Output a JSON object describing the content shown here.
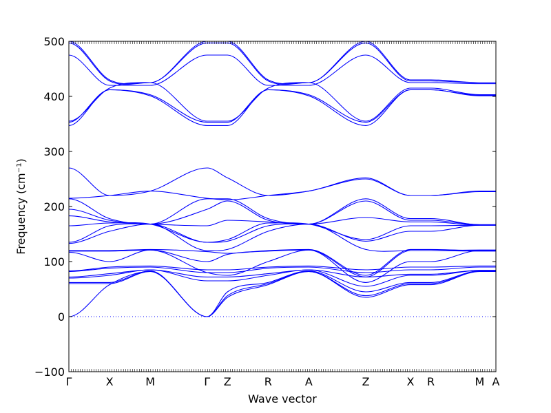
{
  "chart_data": {
    "type": "line",
    "title": "",
    "xlabel": "Wave vector",
    "ylabel": "Frequency (cm⁻¹)",
    "ylim": [
      -100,
      500
    ],
    "yticks": [
      -100,
      0,
      100,
      200,
      300,
      400,
      500
    ],
    "xlim": [
      0,
      10.5
    ],
    "high_symmetry_points": [
      {
        "label": "Γ",
        "x": 0.0
      },
      {
        "label": "X",
        "x": 1.0
      },
      {
        "label": "M",
        "x": 2.0
      },
      {
        "label": "Γ",
        "x": 3.4
      },
      {
        "label": "Z",
        "x": 3.9
      },
      {
        "label": "R",
        "x": 4.9
      },
      {
        "label": "A",
        "x": 5.9
      },
      {
        "label": "Z",
        "x": 7.3
      },
      {
        "label": "X",
        "x": 8.4
      },
      {
        "label": "R",
        "x": 8.9
      },
      {
        "label": "M",
        "x": 10.1
      },
      {
        "label": "A",
        "x": 10.5
      }
    ],
    "zero_line": true,
    "grid": false,
    "line_color": "#0000ff",
    "series": [
      {
        "values": [
          500,
          430,
          425,
          500,
          500,
          430,
          425,
          500,
          430,
          430,
          425,
          425
        ]
      },
      {
        "values": [
          497,
          428,
          425,
          497,
          497,
          428,
          425,
          497,
          428,
          428,
          425,
          425
        ]
      },
      {
        "values": [
          475,
          420,
          420,
          475,
          475,
          420,
          420,
          475,
          425,
          425,
          423,
          423
        ]
      },
      {
        "values": [
          355,
          415,
          425,
          355,
          355,
          415,
          425,
          355,
          415,
          415,
          403,
          403
        ]
      },
      {
        "values": [
          353,
          412,
          403,
          353,
          353,
          412,
          403,
          353,
          412,
          412,
          402,
          402
        ]
      },
      {
        "values": [
          347,
          412,
          401,
          347,
          347,
          412,
          401,
          347,
          412,
          412,
          401,
          401
        ]
      },
      {
        "values": [
          270,
          220,
          228,
          270,
          252,
          220,
          228,
          252,
          220,
          220,
          228,
          228
        ]
      },
      {
        "values": [
          215,
          220,
          228,
          215,
          212,
          220,
          228,
          250,
          220,
          220,
          227,
          227
        ]
      },
      {
        "values": [
          214,
          178,
          168,
          214,
          214,
          178,
          168,
          214,
          178,
          178,
          167,
          167
        ]
      },
      {
        "values": [
          195,
          175,
          168,
          195,
          210,
          175,
          168,
          210,
          175,
          175,
          167,
          167
        ]
      },
      {
        "values": [
          183,
          172,
          168,
          165,
          175,
          172,
          168,
          180,
          172,
          172,
          166,
          166
        ]
      },
      {
        "values": [
          165,
          170,
          168,
          135,
          140,
          170,
          168,
          140,
          165,
          165,
          166,
          166
        ]
      },
      {
        "values": [
          135,
          165,
          168,
          135,
          137,
          165,
          168,
          137,
          155,
          155,
          166,
          166
        ]
      },
      {
        "values": [
          133,
          155,
          168,
          120,
          122,
          155,
          168,
          122,
          120,
          120,
          121,
          121
        ]
      },
      {
        "values": [
          120,
          120,
          122,
          118,
          115,
          120,
          122,
          75,
          122,
          122,
          120,
          120
        ]
      },
      {
        "values": [
          119,
          119,
          121,
          100,
          113,
          119,
          121,
          72,
          120,
          120,
          119,
          119
        ]
      },
      {
        "values": [
          117,
          100,
          121,
          80,
          75,
          100,
          121,
          62,
          100,
          100,
          120,
          120
        ]
      },
      {
        "values": [
          83,
          90,
          92,
          85,
          85,
          90,
          92,
          85,
          90,
          90,
          92,
          92
        ]
      },
      {
        "values": [
          82,
          88,
          90,
          80,
          80,
          88,
          90,
          80,
          85,
          85,
          90,
          90
        ]
      },
      {
        "values": [
          72,
          78,
          85,
          72,
          72,
          78,
          85,
          72,
          77,
          77,
          84,
          84
        ]
      },
      {
        "values": [
          70,
          75,
          85,
          65,
          65,
          75,
          85,
          55,
          75,
          75,
          84,
          84
        ]
      },
      {
        "values": [
          62,
          62,
          83,
          0,
          45,
          62,
          83,
          45,
          62,
          62,
          83,
          83
        ]
      },
      {
        "values": [
          60,
          60,
          82,
          0,
          38,
          60,
          82,
          38,
          60,
          60,
          82,
          82
        ]
      },
      {
        "values": [
          0,
          58,
          82,
          0,
          35,
          58,
          82,
          35,
          58,
          58,
          82,
          82
        ]
      }
    ]
  }
}
